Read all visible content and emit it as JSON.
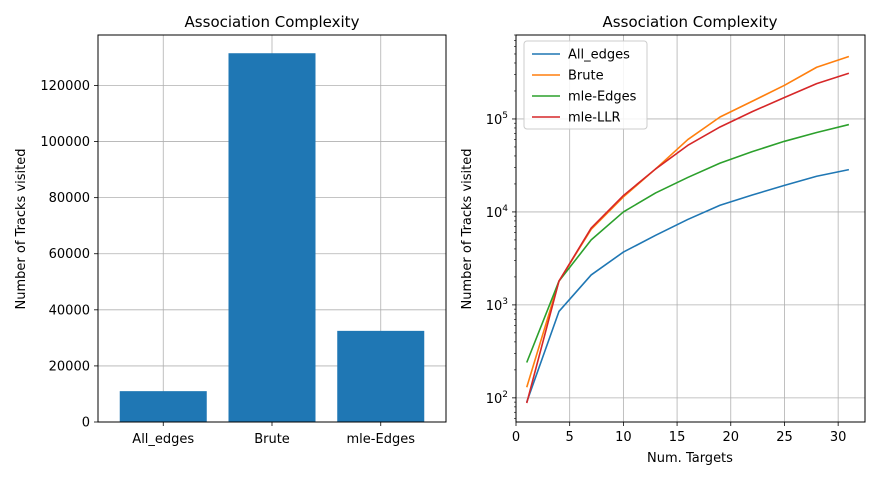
{
  "chart_data": [
    {
      "type": "bar",
      "title": "Association Complexity",
      "xlabel": "",
      "ylabel": "Number of Tracks visited",
      "categories": [
        "All_edges",
        "Brute",
        "mle-Edges"
      ],
      "values": [
        11000,
        131500,
        32500
      ],
      "ylim": [
        0,
        138000
      ],
      "yticks": [
        0,
        20000,
        40000,
        60000,
        80000,
        100000,
        120000
      ],
      "grid": true,
      "color": "#1f77b4"
    },
    {
      "type": "line",
      "title": "Association Complexity",
      "xlabel": "Num. Targets",
      "ylabel": "Number of Tracks visited",
      "yscale": "log",
      "xlim": [
        0,
        32.5
      ],
      "ylim": [
        55,
        800000
      ],
      "xticks": [
        0,
        5,
        10,
        15,
        20,
        25,
        30
      ],
      "yticks": [
        100,
        1000,
        10000,
        100000
      ],
      "ytick_labels": [
        "10^2",
        "10^3",
        "10^4",
        "10^5"
      ],
      "grid": true,
      "legend": "upper-left",
      "x": [
        1,
        4,
        7,
        10,
        13,
        16,
        19,
        22,
        25,
        28,
        31
      ],
      "series": [
        {
          "name": "All_edges",
          "color": "#1f77b4",
          "values": [
            90,
            850,
            2100,
            3700,
            5600,
            8300,
            11800,
            15200,
            19300,
            24200,
            28500
          ]
        },
        {
          "name": "Brute",
          "color": "#ff7f0e",
          "values": [
            130,
            1800,
            6500,
            14500,
            29000,
            60000,
            105000,
            155000,
            230000,
            360000,
            470000
          ]
        },
        {
          "name": "mle-Edges",
          "color": "#2ca02c",
          "values": [
            240,
            1800,
            5000,
            10000,
            16000,
            23500,
            33500,
            44500,
            57500,
            71500,
            87000
          ]
        },
        {
          "name": "mle-LLR",
          "color": "#d62728",
          "values": [
            88,
            1800,
            6700,
            15000,
            29000,
            52000,
            82000,
            120000,
            170000,
            240000,
            310000
          ]
        }
      ]
    }
  ]
}
